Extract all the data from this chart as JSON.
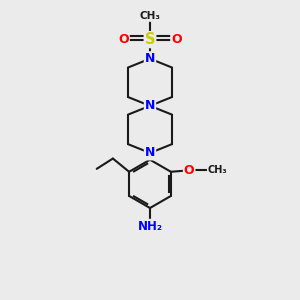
{
  "bg_color": "#ebebeb",
  "bond_color": "#1a1a1a",
  "N_color": "#0000ff",
  "O_color": "#ff0000",
  "S_color": "#cccc00",
  "NH_color": "#0000ff",
  "line_width": 1.5,
  "xlim": [
    0,
    10
  ],
  "ylim": [
    0,
    10
  ]
}
